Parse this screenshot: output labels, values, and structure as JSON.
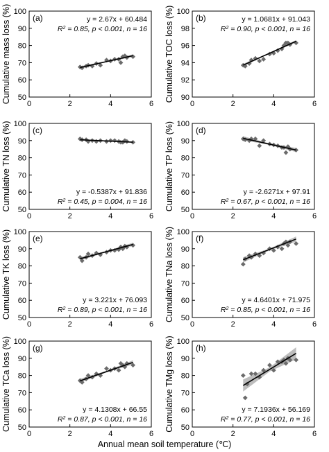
{
  "figure": {
    "xlabel": "Annual mean soil temperature (℃)"
  },
  "chart_data": [
    {
      "type": "scatter",
      "panel": "(a)",
      "ylabel": "Cumulative mass loss (%)",
      "equation": "y = 2.67x + 60.484",
      "stats": "R² = 0.85, p < 0.001, n = 16",
      "stats_pre": "R",
      "stats_sup": "2",
      "stats_post": " = 0.85, p < 0.001, n = 16",
      "equation_position": "top-right",
      "xlim": [
        0,
        6
      ],
      "ylim": [
        50,
        100
      ],
      "xticks": [
        "0",
        "2",
        "4",
        "6"
      ],
      "yticks": [
        "50",
        "60",
        "70",
        "80",
        "90",
        "100"
      ],
      "fit": {
        "slope": 2.67,
        "intercept": 60.484
      },
      "band": 0.8,
      "x": [
        2.5,
        2.6,
        2.8,
        2.9,
        3.1,
        3.3,
        3.5,
        3.8,
        4.0,
        4.2,
        4.4,
        4.5,
        4.6,
        4.7,
        4.8,
        5.1
      ],
      "y": [
        67.5,
        67.0,
        68.0,
        68.5,
        68.0,
        69.5,
        68.5,
        71.5,
        71.0,
        72.0,
        72.0,
        70.0,
        73.5,
        74.0,
        73.0,
        73.5
      ]
    },
    {
      "type": "scatter",
      "panel": "(b)",
      "ylabel": "Cumulative TOC loss (%)",
      "equation": "y = 1.0681x + 91.043",
      "stats": "R² = 0.90, p < 0.001, n = 16",
      "stats_pre": "R",
      "stats_sup": "2",
      "stats_post": " = 0.90, p < 0.001, n = 16",
      "equation_position": "top-right",
      "xlim": [
        0,
        6
      ],
      "ylim": [
        90,
        100
      ],
      "xticks": [
        "0",
        "2",
        "4",
        "6"
      ],
      "yticks": [
        "90",
        "92",
        "94",
        "96",
        "98",
        "100"
      ],
      "fit": {
        "slope": 1.0681,
        "intercept": 91.043
      },
      "band": 0.15,
      "x": [
        2.5,
        2.6,
        2.8,
        2.9,
        3.1,
        3.3,
        3.5,
        3.8,
        4.0,
        4.2,
        4.4,
        4.5,
        4.6,
        4.7,
        4.8,
        5.1
      ],
      "y": [
        93.7,
        93.6,
        93.9,
        94.3,
        94.5,
        94.2,
        94.4,
        95.0,
        95.1,
        95.4,
        95.6,
        96.0,
        96.3,
        96.3,
        96.1,
        96.3
      ]
    },
    {
      "type": "scatter",
      "panel": "(c)",
      "ylabel": "Cumulative TN loss (%)",
      "equation": "y = -0.5387x + 91.836",
      "stats": "R² = 0.45, p = 0.004, n = 16",
      "stats_pre": "R",
      "stats_sup": "2",
      "stats_post": " = 0.45, p = 0.004, n = 16",
      "equation_position": "bottom-right",
      "xlim": [
        0,
        6
      ],
      "ylim": [
        50,
        100
      ],
      "xticks": [
        "0",
        "2",
        "4",
        "6"
      ],
      "yticks": [
        "50",
        "60",
        "70",
        "80",
        "90",
        "100"
      ],
      "fit": {
        "slope": -0.5387,
        "intercept": 91.836
      },
      "band": 0.4,
      "x": [
        2.5,
        2.6,
        2.8,
        2.9,
        3.1,
        3.3,
        3.5,
        3.8,
        4.0,
        4.2,
        4.4,
        4.5,
        4.6,
        4.7,
        4.8,
        5.1
      ],
      "y": [
        91.0,
        90.5,
        90.5,
        89.5,
        90.0,
        89.5,
        90.0,
        89.5,
        90.0,
        90.0,
        89.5,
        89.0,
        89.0,
        90.0,
        89.5,
        89.0
      ]
    },
    {
      "type": "scatter",
      "panel": "(d)",
      "ylabel": "Cumulative TP loss (%)",
      "equation": "y = -2.6271x + 97.91",
      "stats": "R² = 0.67, p < 0.001, n = 16",
      "stats_pre": "R",
      "stats_sup": "2",
      "stats_post": " = 0.67, p < 0.001, n = 16",
      "equation_position": "bottom-right",
      "xlim": [
        0,
        6
      ],
      "ylim": [
        50,
        100
      ],
      "xticks": [
        "0",
        "2",
        "4",
        "6"
      ],
      "yticks": [
        "50",
        "60",
        "70",
        "80",
        "90",
        "100"
      ],
      "fit": {
        "slope": -2.6271,
        "intercept": 97.91
      },
      "band": 1.2,
      "x": [
        2.5,
        2.6,
        2.8,
        2.9,
        3.1,
        3.3,
        3.5,
        3.8,
        4.0,
        4.2,
        4.4,
        4.5,
        4.6,
        4.7,
        4.8,
        5.1
      ],
      "y": [
        91.0,
        90.5,
        90.0,
        91.0,
        91.0,
        87.0,
        90.0,
        88.0,
        87.5,
        87.0,
        86.0,
        86.0,
        83.0,
        86.5,
        85.0,
        84.5
      ]
    },
    {
      "type": "scatter",
      "panel": "(e)",
      "ylabel": "Cumulative TK loss (%)",
      "equation": "y = 3.221x + 76.093",
      "stats": "R² = 0.89, p < 0.001, n = 16",
      "stats_pre": "R",
      "stats_sup": "2",
      "stats_post": " = 0.89, p < 0.001, n = 16",
      "equation_position": "bottom-right",
      "xlim": [
        0,
        6
      ],
      "ylim": [
        50,
        100
      ],
      "xticks": [
        "0",
        "2",
        "4",
        "6"
      ],
      "yticks": [
        "50",
        "60",
        "70",
        "80",
        "90",
        "100"
      ],
      "fit": {
        "slope": 3.221,
        "intercept": 76.093
      },
      "band": 1.0,
      "x": [
        2.5,
        2.6,
        2.8,
        2.9,
        3.1,
        3.3,
        3.5,
        3.8,
        4.0,
        4.2,
        4.4,
        4.5,
        4.6,
        4.7,
        4.8,
        5.1
      ],
      "y": [
        85.0,
        83.0,
        85.0,
        87.0,
        86.0,
        87.5,
        86.5,
        88.0,
        89.0,
        89.0,
        89.5,
        91.0,
        90.0,
        91.5,
        91.0,
        92.0
      ]
    },
    {
      "type": "scatter",
      "panel": "(f)",
      "ylabel": "Cumulative TNa loss (%)",
      "equation": "y = 4.6401x + 71.975",
      "stats": "R² = 0.85, p < 0.001, n = 16",
      "stats_pre": "R",
      "stats_sup": "2",
      "stats_post": " = 0.85, p < 0.001, n = 16",
      "equation_position": "bottom-right",
      "xlim": [
        0,
        6
      ],
      "ylim": [
        50,
        100
      ],
      "xticks": [
        "0",
        "2",
        "4",
        "6"
      ],
      "yticks": [
        "50",
        "60",
        "70",
        "80",
        "90",
        "100"
      ],
      "fit": {
        "slope": 4.6401,
        "intercept": 71.975
      },
      "band": 1.5,
      "x": [
        2.5,
        2.6,
        2.8,
        2.9,
        3.1,
        3.3,
        3.5,
        3.8,
        4.0,
        4.2,
        4.4,
        4.5,
        4.6,
        4.7,
        4.8,
        5.1
      ],
      "y": [
        81.0,
        84.0,
        86.0,
        85.0,
        87.0,
        86.0,
        87.5,
        90.0,
        89.0,
        91.0,
        90.0,
        93.0,
        94.0,
        92.0,
        94.0,
        93.0
      ]
    },
    {
      "type": "scatter",
      "panel": "(g)",
      "ylabel": "Cumulative TCa loss (%)",
      "equation": "y = 4.1308x + 66.55",
      "stats": "R² = 0.87, p < 0.001, n = 16",
      "stats_pre": "R",
      "stats_sup": "2",
      "stats_post": " = 0.87, p < 0.001, n = 16",
      "equation_position": "bottom-right",
      "xlim": [
        0,
        6
      ],
      "ylim": [
        50,
        100
      ],
      "xticks": [
        "0",
        "2",
        "4",
        "6"
      ],
      "yticks": [
        "50",
        "60",
        "70",
        "80",
        "90",
        "100"
      ],
      "fit": {
        "slope": 4.1308,
        "intercept": 66.55
      },
      "band": 1.2,
      "x": [
        2.5,
        2.6,
        2.8,
        2.9,
        3.1,
        3.3,
        3.5,
        3.8,
        4.0,
        4.2,
        4.4,
        4.5,
        4.6,
        4.7,
        4.8,
        5.1
      ],
      "y": [
        77.0,
        76.0,
        78.0,
        80.0,
        79.0,
        81.0,
        80.0,
        84.0,
        83.0,
        84.0,
        83.0,
        87.0,
        86.0,
        85.0,
        87.0,
        86.0
      ]
    },
    {
      "type": "scatter",
      "panel": "(h)",
      "ylabel": "Cumulative TMg loss (%)",
      "equation": "y = 7.1936x + 56.169",
      "stats": "R² = 0.77, p < 0.001, n = 16",
      "stats_pre": "R",
      "stats_sup": "2",
      "stats_post": " = 0.77, p < 0.001, n = 16",
      "equation_position": "bottom-right",
      "xlim": [
        0,
        6
      ],
      "ylim": [
        50,
        100
      ],
      "xticks": [
        "0",
        "2",
        "4",
        "6"
      ],
      "yticks": [
        "50",
        "60",
        "70",
        "80",
        "90",
        "100"
      ],
      "fit": {
        "slope": 7.1936,
        "intercept": 56.169
      },
      "band": 3.5,
      "x": [
        2.5,
        2.6,
        2.7,
        2.9,
        3.1,
        3.3,
        3.5,
        3.8,
        4.0,
        4.2,
        4.4,
        4.5,
        4.6,
        4.7,
        4.8,
        5.1
      ],
      "y": [
        80.0,
        67.0,
        75.0,
        81.0,
        81.0,
        79.0,
        83.0,
        86.0,
        83.0,
        88.0,
        88.0,
        89.0,
        87.0,
        90.0,
        89.0,
        89.0
      ]
    }
  ],
  "colors": {
    "marker": "#6b6b6b",
    "fit_line": "#000000",
    "confidence_band": "#bdbdbd",
    "axis": "#000000"
  }
}
